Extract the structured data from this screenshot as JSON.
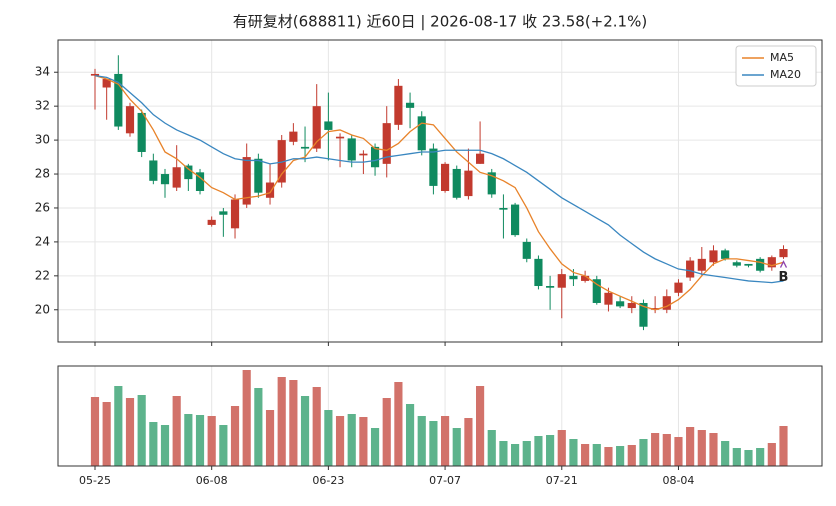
{
  "chart_data": {
    "type": "candlestick",
    "title": "有研复材(688811) 近60日 | 2026-08-17 收 23.58(+2.1%)",
    "categories": [
      "05-25",
      null,
      null,
      null,
      null,
      null,
      null,
      null,
      null,
      null,
      "06-08",
      null,
      null,
      null,
      null,
      null,
      null,
      null,
      null,
      null,
      "06-23",
      null,
      null,
      null,
      null,
      null,
      null,
      null,
      null,
      null,
      "07-07",
      null,
      null,
      null,
      null,
      null,
      null,
      null,
      null,
      null,
      "07-21",
      null,
      null,
      null,
      null,
      null,
      null,
      null,
      null,
      null,
      "08-04",
      null,
      null,
      null,
      null,
      null,
      null,
      null,
      null,
      null
    ],
    "open": [
      33.8,
      33.1,
      33.9,
      30.4,
      31.6,
      28.8,
      28.0,
      27.2,
      28.5,
      28.1,
      25.0,
      25.8,
      24.8,
      26.2,
      28.9,
      26.6,
      27.5,
      29.9,
      29.6,
      29.5,
      31.1,
      30.1,
      30.1,
      29.1,
      29.6,
      28.6,
      30.9,
      32.2,
      31.4,
      29.5,
      27.0,
      28.3,
      26.7,
      28.6,
      28.1,
      26.0,
      26.2,
      24.0,
      23.0,
      21.4,
      21.3,
      22.0,
      21.7,
      21.8,
      20.3,
      20.5,
      20.1,
      20.4,
      20.0,
      20.0,
      21.0,
      21.9,
      22.3,
      22.8,
      23.5,
      22.8,
      22.7,
      23.0,
      22.5,
      23.1
    ],
    "high": [
      34.2,
      33.6,
      35.0,
      32.2,
      31.8,
      29.2,
      28.3,
      29.7,
      28.6,
      28.3,
      25.5,
      26.0,
      26.8,
      29.8,
      29.2,
      28.6,
      30.3,
      31.0,
      30.8,
      33.3,
      32.8,
      30.4,
      30.3,
      29.4,
      29.8,
      32.0,
      33.6,
      32.8,
      31.7,
      29.8,
      28.7,
      28.5,
      29.5,
      31.1,
      28.3,
      26.8,
      26.3,
      24.2,
      23.2,
      22.0,
      22.4,
      22.4,
      22.3,
      22.0,
      21.3,
      20.8,
      20.8,
      20.6,
      20.8,
      21.2,
      21.8,
      23.1,
      23.7,
      23.8,
      23.6,
      22.9,
      22.7,
      23.1,
      23.2,
      23.8
    ],
    "low": [
      31.8,
      31.2,
      30.6,
      30.2,
      29.0,
      27.4,
      26.6,
      27.0,
      27.0,
      26.8,
      24.9,
      24.3,
      24.2,
      26.0,
      26.6,
      26.2,
      27.2,
      29.7,
      28.7,
      29.3,
      28.8,
      28.4,
      28.4,
      28.0,
      27.9,
      27.8,
      30.6,
      30.7,
      29.1,
      26.8,
      26.9,
      26.5,
      26.5,
      28.6,
      26.6,
      24.2,
      24.3,
      22.8,
      21.2,
      20.0,
      19.5,
      21.4,
      21.6,
      20.3,
      19.9,
      20.1,
      19.8,
      18.8,
      19.8,
      19.8,
      20.8,
      21.7,
      22.0,
      22.6,
      22.9,
      22.5,
      22.5,
      22.2,
      22.3,
      23.0
    ],
    "close": [
      33.9,
      33.6,
      30.8,
      32.0,
      29.3,
      27.6,
      27.4,
      28.4,
      27.7,
      27.0,
      25.3,
      25.6,
      26.5,
      29.0,
      26.9,
      27.5,
      30.0,
      30.5,
      29.5,
      32.0,
      30.6,
      30.2,
      28.8,
      29.2,
      28.4,
      31.0,
      33.2,
      31.9,
      29.4,
      27.3,
      28.6,
      26.6,
      28.2,
      29.2,
      26.8,
      25.9,
      24.4,
      23.0,
      21.4,
      21.3,
      22.1,
      21.8,
      22.0,
      20.4,
      21.0,
      20.2,
      20.4,
      19.0,
      20.1,
      20.8,
      21.6,
      22.9,
      23.0,
      23.5,
      23.0,
      22.6,
      22.6,
      22.3,
      23.1,
      23.58
    ],
    "series": [
      {
        "name": "MA5",
        "color": "#e8832a",
        "values": [
          33.8,
          33.6,
          33.3,
          32.4,
          31.7,
          30.6,
          29.3,
          28.9,
          28.3,
          27.8,
          27.2,
          26.9,
          26.5,
          26.6,
          26.7,
          26.9,
          28.0,
          28.8,
          29.0,
          29.9,
          30.5,
          30.6,
          30.3,
          30.1,
          29.5,
          29.4,
          29.8,
          30.5,
          31.0,
          30.9,
          30.1,
          29.3,
          28.7,
          28.1,
          27.9,
          27.6,
          27.2,
          26.0,
          24.6,
          23.6,
          22.7,
          22.2,
          22.0,
          21.5,
          21.1,
          20.8,
          20.5,
          20.2,
          20.0,
          20.2,
          20.6,
          21.2,
          22.0,
          22.7,
          23.0,
          23.0,
          22.9,
          22.8,
          22.6,
          22.8
        ]
      },
      {
        "name": "MA20",
        "color": "#3a87c0",
        "values": [
          33.8,
          33.7,
          33.4,
          32.8,
          32.2,
          31.5,
          31.0,
          30.6,
          30.3,
          30.0,
          29.6,
          29.2,
          28.9,
          28.8,
          28.8,
          28.6,
          28.7,
          28.9,
          28.9,
          29.0,
          28.9,
          28.8,
          28.7,
          28.7,
          28.8,
          29.0,
          29.1,
          29.2,
          29.3,
          29.3,
          29.4,
          29.4,
          29.4,
          29.4,
          29.2,
          28.9,
          28.5,
          28.1,
          27.6,
          27.1,
          26.6,
          26.2,
          25.8,
          25.4,
          25.0,
          24.4,
          23.9,
          23.4,
          23.0,
          22.7,
          22.4,
          22.3,
          22.1,
          22.0,
          21.9,
          21.8,
          21.7,
          21.65,
          21.6,
          21.7
        ]
      }
    ],
    "volume": [
      69,
      64,
      80,
      68,
      71,
      44,
      41,
      70,
      52,
      51,
      50,
      41,
      60,
      96,
      78,
      56,
      89,
      86,
      70,
      79,
      56,
      50,
      52,
      49,
      38,
      68,
      84,
      62,
      50,
      45,
      50,
      38,
      48,
      80,
      36,
      25,
      22,
      25,
      30,
      31,
      36,
      27,
      22,
      22,
      19,
      20,
      21,
      27,
      33,
      32,
      29,
      39,
      36,
      33,
      25,
      18,
      16,
      18,
      23,
      40
    ],
    "up_color": "#c23a2e",
    "down_color": "#0f8a5f",
    "volume_up_color": "#d2726a",
    "volume_down_color": "#5db38c",
    "xlim": [
      -3.17,
      62.3
    ],
    "ylim": [
      18.1,
      35.9
    ],
    "yticks": [
      20,
      22,
      24,
      26,
      28,
      30,
      32,
      34
    ],
    "volume_ylim": [
      0,
      100
    ],
    "grid": true,
    "legend": "upper right",
    "annotations": [
      {
        "text": "B",
        "x": 59,
        "y": 21.9,
        "color": "#8e44ad"
      }
    ]
  }
}
